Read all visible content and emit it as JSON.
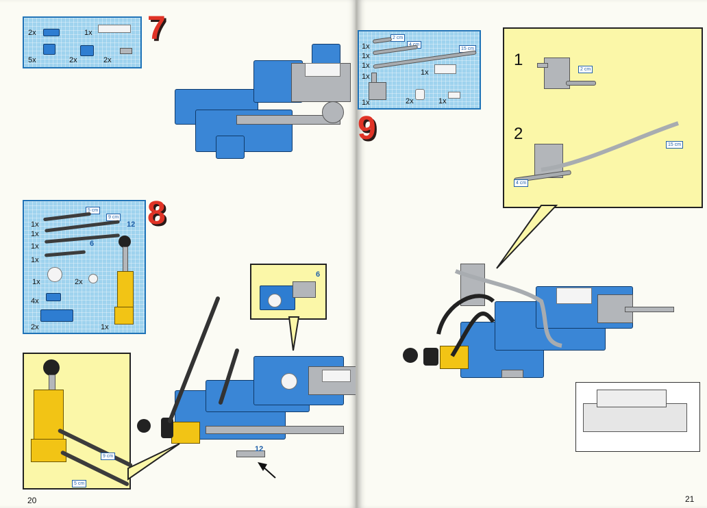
{
  "pages": {
    "left_number": "20",
    "right_number": "21"
  },
  "steps": {
    "s7": "7",
    "s8": "8",
    "s9": "9"
  },
  "step7_parts": {
    "q1": "2x",
    "q2": "1x",
    "q3": "5x",
    "q4": "2x",
    "q5": "2x"
  },
  "step8_parts": {
    "len_a": "5 cm",
    "len_b": "9 cm",
    "num_12": "12",
    "num_6": "6",
    "q1": "1x",
    "q2": "1x",
    "q3": "1x",
    "q4": "1x",
    "q5": "1x",
    "q6": "2x",
    "q7": "4x",
    "q8": "2x",
    "q9": "1x"
  },
  "step9_parts": {
    "len_a": "2 cm",
    "len_b": "4 cm",
    "len_c": "15 cm",
    "q1": "1x",
    "q2": "1x",
    "q3": "1x",
    "q4": "1x",
    "q5": "1x",
    "q6": "1x",
    "q7": "2x",
    "q8": "1x"
  },
  "callout_step8_top": {
    "num": "6"
  },
  "callout_step8_bottom": {
    "len_9": "9 cm",
    "len_5": "5 cm"
  },
  "model_labels": {
    "num_12": "12"
  },
  "callout_step9": {
    "sub1": "1",
    "sub2": "2",
    "len_2": "2 cm",
    "len_15": "15 cm",
    "len_4": "4 cm"
  },
  "colors": {
    "brick_blue": "#2e7dd1",
    "step_red": "#e03326",
    "grid_blue": "#9fd3ee",
    "callout_yellow": "#fbf7a8",
    "piston_yellow": "#f2c415"
  },
  "icons": [
    "technic-brick",
    "technic-axle",
    "gear",
    "pneumatic-cylinder",
    "arrow"
  ]
}
